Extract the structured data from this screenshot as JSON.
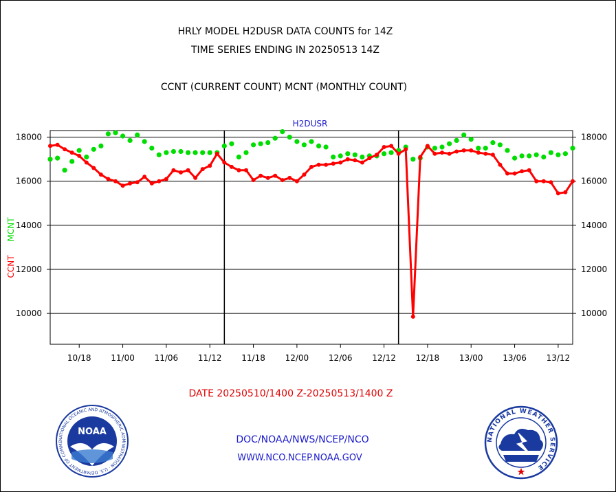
{
  "header": {
    "line1": "HRLY MODEL H2DUSR DATA COUNTS for 14Z",
    "line2": "TIME SERIES ENDING IN 20250513 14Z",
    "line3": "CCNT (CURRENT COUNT) MCNT (MONTHLY COUNT)"
  },
  "footer": {
    "date_range": "DATE 20250510/1400 Z-20250513/1400 Z",
    "org": "DOC/NOAA/NWS/NCEP/NCO",
    "url": "WWW.NCO.NCEP.NOAA.GOV"
  },
  "logos": {
    "noaa": "NOAA",
    "noaa_ring": "NATIONAL OCEANIC AND ATMOSPHERIC ADMINISTRATION · U.S. DEPARTMENT OF COMMERCE",
    "nws_ring": "NATIONAL WEATHER SERVICE"
  },
  "chart_data": {
    "type": "line",
    "title": "H2DUSR",
    "ylabel_series1": "CCNT",
    "ylabel_series2": "MCNT",
    "ylim": [
      8600,
      18300
    ],
    "yticks": [
      10000,
      12000,
      14000,
      16000,
      18000
    ],
    "xlim": [
      14,
      86
    ],
    "xticks": [
      {
        "x": 18,
        "label": "10/18"
      },
      {
        "x": 24,
        "label": "11/00"
      },
      {
        "x": 30,
        "label": "11/06"
      },
      {
        "x": 36,
        "label": "11/12"
      },
      {
        "x": 42,
        "label": "11/18"
      },
      {
        "x": 48,
        "label": "12/00"
      },
      {
        "x": 54,
        "label": "12/06"
      },
      {
        "x": 60,
        "label": "12/12"
      },
      {
        "x": 66,
        "label": "12/18"
      },
      {
        "x": 72,
        "label": "13/00"
      },
      {
        "x": 78,
        "label": "13/06"
      },
      {
        "x": 84,
        "label": "13/12"
      }
    ],
    "day_boundaries": [
      14,
      38,
      62,
      86
    ],
    "grid": true,
    "colors": {
      "ccnt": "#ff0000",
      "mcnt": "#00dd00",
      "title": "#1a1acc"
    },
    "x": [
      14,
      15,
      16,
      17,
      18,
      19,
      20,
      21,
      22,
      23,
      24,
      25,
      26,
      27,
      28,
      29,
      30,
      31,
      32,
      33,
      34,
      35,
      36,
      37,
      38,
      39,
      40,
      41,
      42,
      43,
      44,
      45,
      46,
      47,
      48,
      49,
      50,
      51,
      52,
      53,
      54,
      55,
      56,
      57,
      58,
      59,
      60,
      61,
      62,
      63,
      64,
      65,
      66,
      67,
      68,
      69,
      70,
      71,
      72,
      73,
      74,
      75,
      76,
      77,
      78,
      79,
      80,
      81,
      82,
      83,
      84,
      85,
      86
    ],
    "series": [
      {
        "name": "CCNT",
        "values": [
          17600,
          17650,
          17450,
          17300,
          17150,
          16850,
          16600,
          16300,
          16100,
          16000,
          15800,
          15900,
          15950,
          16200,
          15900,
          16000,
          16100,
          16500,
          16400,
          16500,
          16150,
          16550,
          16700,
          17250,
          16850,
          16650,
          16500,
          16500,
          16050,
          16250,
          16150,
          16250,
          16050,
          16150,
          16000,
          16300,
          16650,
          16750,
          16750,
          16800,
          16850,
          17000,
          16950,
          16850,
          17050,
          17200,
          17550,
          17600,
          17250,
          17450,
          9850,
          17100,
          17600,
          17250,
          17300,
          17250,
          17350,
          17400,
          17400,
          17300,
          17250,
          17200,
          16750,
          16350,
          16350,
          16450,
          16500,
          16000,
          16000,
          15950,
          15450,
          15500,
          16000
        ]
      },
      {
        "name": "MCNT",
        "values": [
          17000,
          17050,
          16500,
          16900,
          17400,
          17100,
          17450,
          17600,
          18150,
          18200,
          18050,
          17850,
          18100,
          17800,
          17500,
          17200,
          17300,
          17350,
          17350,
          17300,
          17300,
          17300,
          17300,
          17300,
          17600,
          17700,
          17100,
          17300,
          17650,
          17700,
          17750,
          17950,
          18250,
          18000,
          17800,
          17650,
          17800,
          17600,
          17550,
          17100,
          17150,
          17250,
          17200,
          17100,
          17150,
          17150,
          17250,
          17300,
          17400,
          17550,
          17000,
          17050,
          17550,
          17500,
          17550,
          17700,
          17850,
          18100,
          17900,
          17500,
          17500,
          17750,
          17650,
          17400,
          17050,
          17150,
          17150,
          17200,
          17100,
          17300,
          17200,
          17250,
          17500
        ]
      }
    ]
  }
}
